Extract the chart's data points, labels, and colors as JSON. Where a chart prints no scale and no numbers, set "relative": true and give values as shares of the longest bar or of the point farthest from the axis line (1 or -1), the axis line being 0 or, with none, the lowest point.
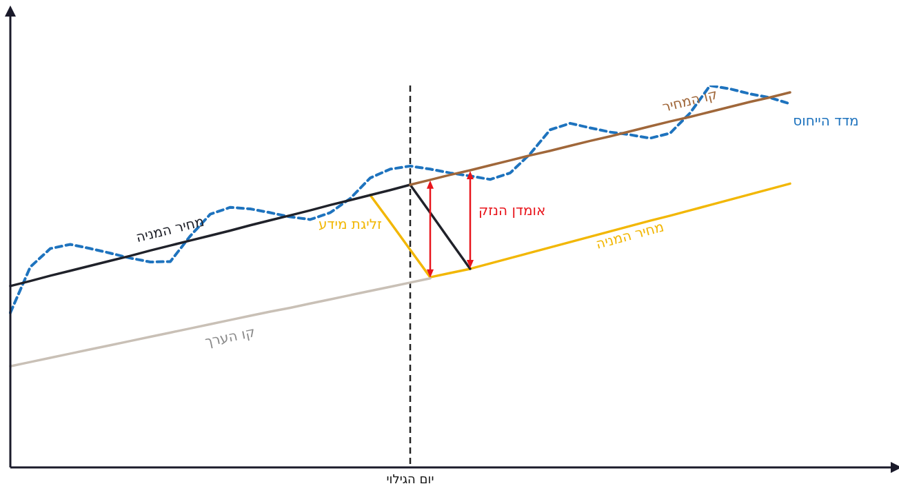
{
  "chart_data": {
    "type": "line",
    "relative": true,
    "grid": false,
    "legend": false,
    "marker": "none",
    "line_style": "solid",
    "categories": [
      null,
      null,
      null,
      null,
      null,
      null,
      null,
      null,
      null,
      null,
      null,
      null,
      null,
      null,
      null,
      null,
      null,
      null,
      null,
      null,
      null,
      null,
      null,
      null,
      null,
      null,
      null,
      null,
      null,
      null,
      null,
      null,
      null,
      null,
      null,
      null,
      null,
      null,
      null,
      null,
      null,
      null,
      null,
      null,
      null
    ],
    "series": [
      {
        "name": "קו הערך",
        "color": "#c9c0b6",
        "values": [
          0.265,
          0.276,
          0.287,
          0.298,
          0.309,
          0.32,
          0.331,
          0.342,
          0.353,
          0.364,
          0.375,
          0.386,
          0.397,
          0.408,
          0.418,
          0.429,
          0.44,
          0.451,
          0.462,
          0.473,
          0.484,
          0.495,
          null,
          null,
          null,
          null,
          null,
          null,
          null,
          null,
          null,
          null,
          null,
          null,
          null,
          null,
          null,
          null,
          null,
          null,
          null,
          null,
          null,
          null,
          null
        ]
      },
      {
        "name": "קו המחיר",
        "color": "#a0673a",
        "values": [
          null,
          null,
          null,
          null,
          null,
          null,
          null,
          null,
          null,
          null,
          null,
          null,
          null,
          null,
          null,
          null,
          null,
          null,
          null,
          null,
          0.74,
          0.753,
          0.766,
          0.778,
          0.791,
          0.804,
          0.817,
          0.829,
          0.842,
          0.855,
          0.867,
          0.88,
          0.893,
          0.906,
          0.918,
          0.931,
          0.944,
          0.957,
          0.969,
          0.982,
          null,
          null,
          null,
          null,
          null
        ]
      },
      {
        "name": "מחיר המניה",
        "color": "#20222a",
        "values": [
          0.475,
          0.488,
          0.502,
          0.515,
          0.528,
          0.541,
          0.554,
          0.568,
          0.581,
          0.594,
          0.607,
          0.62,
          0.634,
          0.647,
          0.66,
          0.673,
          0.687,
          0.7,
          0.713,
          0.726,
          0.74,
          0.667,
          0.593,
          0.52,
          null,
          null,
          null,
          null,
          null,
          null,
          null,
          null,
          null,
          null,
          null,
          null,
          null,
          null,
          null,
          null,
          null,
          null,
          null,
          null,
          null
        ]
      },
      {
        "name": "זליגת מידע",
        "color": "#f2b705",
        "values": [
          null,
          null,
          null,
          null,
          null,
          null,
          null,
          null,
          null,
          null,
          null,
          null,
          null,
          null,
          null,
          null,
          null,
          null,
          0.713,
          0.642,
          0.57,
          0.498,
          null,
          null,
          null,
          null,
          null,
          null,
          null,
          null,
          null,
          null,
          null,
          null,
          null,
          null,
          null,
          null,
          null,
          null,
          null,
          null,
          null,
          null,
          null
        ]
      },
      {
        "name": "מחיר המניה",
        "color": "#f2b705",
        "values": [
          null,
          null,
          null,
          null,
          null,
          null,
          null,
          null,
          null,
          null,
          null,
          null,
          null,
          null,
          null,
          null,
          null,
          null,
          null,
          null,
          null,
          0.498,
          0.509,
          0.52,
          0.534,
          0.548,
          0.562,
          0.576,
          0.59,
          0.604,
          0.618,
          0.632,
          0.646,
          0.659,
          0.673,
          0.687,
          0.701,
          0.715,
          0.729,
          0.743,
          null,
          null,
          null,
          null,
          null
        ]
      },
      {
        "name": "מדד הייחוס",
        "color": "#1e73be",
        "line_style": "dashed",
        "values": [
          0.405,
          0.525,
          0.573,
          0.584,
          0.573,
          0.561,
          0.548,
          0.538,
          0.539,
          0.606,
          0.663,
          0.681,
          0.677,
          0.667,
          0.656,
          0.649,
          0.667,
          0.704,
          0.758,
          0.781,
          0.789,
          0.781,
          0.771,
          0.763,
          0.754,
          0.771,
          0.821,
          0.884,
          0.901,
          0.889,
          0.878,
          0.871,
          0.862,
          0.875,
          0.928,
          1.0,
          0.991,
          0.978,
          0.968,
          0.952,
          null,
          null,
          null,
          null,
          null
        ]
      }
    ],
    "annotations": [
      "יום הגילוי",
      "אומדן הנזק"
    ]
  }
}
